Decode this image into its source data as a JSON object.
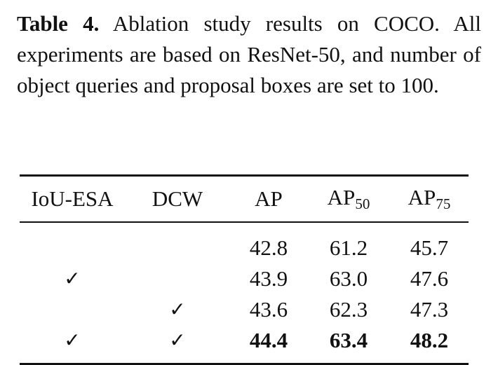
{
  "caption": {
    "label": "Table 4.",
    "text": "Ablation study results on COCO. All experiments are based on ResNet-50, and number of object queries and proposal boxes are set to 100."
  },
  "table": {
    "headers": [
      {
        "main": "IoU-ESA",
        "sub": ""
      },
      {
        "main": "DCW",
        "sub": ""
      },
      {
        "main": "AP",
        "sub": ""
      },
      {
        "main": "AP",
        "sub": "50"
      },
      {
        "main": "AP",
        "sub": "75"
      }
    ],
    "check_symbol": "✓",
    "rows": [
      {
        "iou_esa": "",
        "dcw": "",
        "ap": "42.8",
        "ap50": "61.2",
        "ap75": "45.7"
      },
      {
        "iou_esa": "✓",
        "dcw": "",
        "ap": "43.9",
        "ap50": "63.0",
        "ap75": "47.6"
      },
      {
        "iou_esa": "",
        "dcw": "✓",
        "ap": "43.6",
        "ap50": "62.3",
        "ap75": "47.3"
      },
      {
        "iou_esa": "✓",
        "dcw": "✓",
        "ap": "44.4",
        "ap50": "63.4",
        "ap75": "48.2"
      }
    ]
  }
}
